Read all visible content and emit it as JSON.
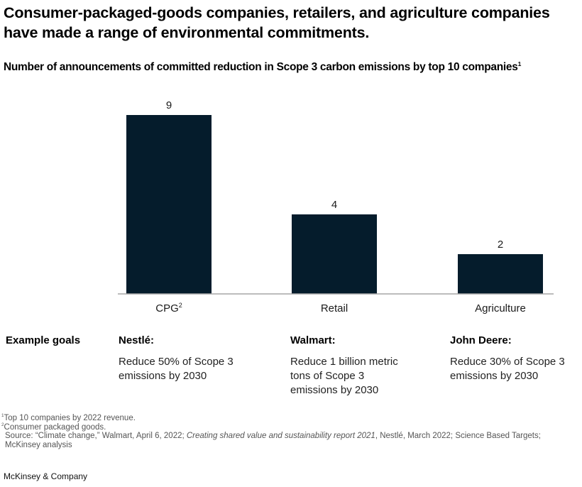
{
  "header": {
    "title": "Consumer-packaged-goods companies, retailers, and agriculture companies have made a range of environmental commitments.",
    "subtitle": "Number of announcements of committed reduction in Scope 3 carbon emissions by top 10 companies",
    "subtitle_sup": "1"
  },
  "colors": {
    "bar": "#051c2c",
    "baseline": "#a6a6a6",
    "text": "#000000"
  },
  "chart_data": {
    "type": "bar",
    "title": "Number of announcements of committed reduction in Scope 3 carbon emissions by top 10 companies",
    "categories": [
      "CPG",
      "Retail",
      "Agriculture"
    ],
    "category_sups": [
      "2",
      "",
      ""
    ],
    "values": [
      9,
      4,
      2
    ],
    "data_labels": [
      "9",
      "4",
      "2"
    ],
    "xlabel": "",
    "ylabel": "",
    "ylim": [
      0,
      9
    ],
    "grid": false,
    "legend": "none"
  },
  "goals": {
    "label": "Example goals",
    "items": [
      {
        "company": "Nestlé:",
        "text": "Reduce 50% of Scope 3 emissions by 2030"
      },
      {
        "company": "Walmart:",
        "text": "Reduce 1 billion metric tons of Scope 3 emissions by 2030"
      },
      {
        "company": "John Deere:",
        "text": "Reduce 30% of Scope 3 emissions by 2030"
      }
    ]
  },
  "footnotes": {
    "note1_sup": "1",
    "note1": "Top 10 companies by 2022 revenue.",
    "note2_sup": "2",
    "note2": "Consumer packaged goods.",
    "source_prefix": "Source: “Climate change,” Walmart, April 6, 2022; ",
    "source_italic": "Creating shared value and sustainability report 2021",
    "source_suffix": ", Nestlé, March 2022; Science Based Targets; McKinsey analysis"
  },
  "brand": "McKinsey & Company"
}
